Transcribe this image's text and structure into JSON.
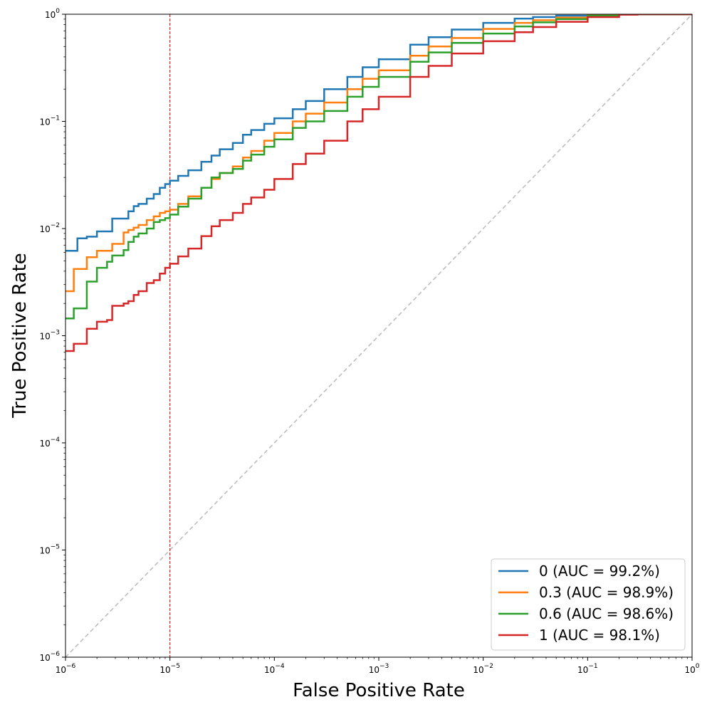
{
  "chart_data": {
    "type": "line",
    "xlabel": "False Positive Rate",
    "ylabel": "True Positive Rate",
    "xscale": "log",
    "yscale": "log",
    "xlim": [
      1e-06,
      1
    ],
    "ylim": [
      1e-06,
      1
    ],
    "x_ticks": [
      1e-06,
      1e-05,
      0.0001,
      0.001,
      0.01,
      0.1,
      1
    ],
    "x_tick_labels": [
      {
        "base": "10",
        "exp": "−6"
      },
      {
        "base": "10",
        "exp": "−5"
      },
      {
        "base": "10",
        "exp": "−4"
      },
      {
        "base": "10",
        "exp": "−3"
      },
      {
        "base": "10",
        "exp": "−2"
      },
      {
        "base": "10",
        "exp": "−1"
      },
      {
        "base": "10",
        "exp": "0"
      }
    ],
    "y_ticks": [
      1e-06,
      1e-05,
      0.0001,
      0.001,
      0.01,
      0.1,
      1
    ],
    "y_tick_labels": [
      {
        "base": "10",
        "exp": "−6"
      },
      {
        "base": "10",
        "exp": "−5"
      },
      {
        "base": "10",
        "exp": "−4"
      },
      {
        "base": "10",
        "exp": "−3"
      },
      {
        "base": "10",
        "exp": "−2"
      },
      {
        "base": "10",
        "exp": "−1"
      },
      {
        "base": "10",
        "exp": "0"
      }
    ],
    "grid": false,
    "legend_position": "lower-right",
    "reference_lines": [
      {
        "kind": "diagonal",
        "style": "dashed",
        "color": "#bdbdbd"
      },
      {
        "kind": "vertical",
        "x": 1e-05,
        "style": "dashed",
        "color": "#d62728"
      }
    ],
    "series": [
      {
        "name": "0 (AUC = 99.2%)",
        "color": "#1f77b4",
        "step": true,
        "x": [
          1e-06,
          1.3e-06,
          1.6e-06,
          2e-06,
          2.8e-06,
          3.6e-06,
          4e-06,
          4.5e-06,
          5e-06,
          6e-06,
          7e-06,
          8e-06,
          9e-06,
          1e-05,
          1.2e-05,
          1.5e-05,
          2e-05,
          2.5e-05,
          3e-05,
          4e-05,
          5e-05,
          6e-05,
          8e-05,
          0.0001,
          0.00015,
          0.0002,
          0.0003,
          0.0005,
          0.0007,
          0.001,
          0.002,
          0.003,
          0.005,
          0.01,
          0.02,
          0.03,
          0.05,
          0.1,
          0.2,
          0.3,
          0.5,
          1
        ],
        "y": [
          0.0062,
          0.0081,
          0.0084,
          0.0094,
          0.0124,
          0.0124,
          0.0145,
          0.0162,
          0.017,
          0.019,
          0.021,
          0.024,
          0.026,
          0.028,
          0.031,
          0.035,
          0.042,
          0.048,
          0.055,
          0.063,
          0.075,
          0.083,
          0.095,
          0.107,
          0.13,
          0.155,
          0.2,
          0.26,
          0.32,
          0.38,
          0.52,
          0.61,
          0.72,
          0.83,
          0.91,
          0.94,
          0.97,
          0.99,
          1.0,
          1.0,
          1.0,
          1.0
        ]
      },
      {
        "name": "0.3 (AUC = 98.9%)",
        "color": "#ff7f0e",
        "step": true,
        "x": [
          1e-06,
          1.2e-06,
          1.6e-06,
          2e-06,
          2.8e-06,
          3.6e-06,
          4e-06,
          4.5e-06,
          5e-06,
          6e-06,
          7e-06,
          8e-06,
          9e-06,
          1e-05,
          1.2e-05,
          1.5e-05,
          2e-05,
          2.5e-05,
          3e-05,
          4e-05,
          5e-05,
          6e-05,
          8e-05,
          0.0001,
          0.00015,
          0.0002,
          0.0003,
          0.0005,
          0.0007,
          0.001,
          0.002,
          0.003,
          0.005,
          0.01,
          0.02,
          0.03,
          0.05,
          0.1,
          0.2,
          0.3,
          0.5,
          1
        ],
        "y": [
          0.0026,
          0.0042,
          0.0054,
          0.0062,
          0.0072,
          0.0092,
          0.0097,
          0.0102,
          0.0108,
          0.012,
          0.013,
          0.014,
          0.0145,
          0.015,
          0.017,
          0.02,
          0.024,
          0.029,
          0.033,
          0.038,
          0.046,
          0.053,
          0.066,
          0.078,
          0.1,
          0.118,
          0.15,
          0.2,
          0.25,
          0.3,
          0.41,
          0.5,
          0.6,
          0.73,
          0.83,
          0.88,
          0.93,
          0.98,
          1.0,
          1.0,
          1.0,
          1.0
        ]
      },
      {
        "name": "0.6 (AUC = 98.6%)",
        "color": "#2ca02c",
        "step": true,
        "x": [
          1e-06,
          1.2e-06,
          1.6e-06,
          2e-06,
          2.5e-06,
          2.8e-06,
          3.6e-06,
          4e-06,
          4.5e-06,
          5e-06,
          6e-06,
          7e-06,
          8e-06,
          9e-06,
          1e-05,
          1.2e-05,
          1.5e-05,
          2e-05,
          2.5e-05,
          3e-05,
          4e-05,
          5e-05,
          6e-05,
          8e-05,
          0.0001,
          0.00015,
          0.0002,
          0.0003,
          0.0005,
          0.0007,
          0.001,
          0.002,
          0.003,
          0.005,
          0.01,
          0.02,
          0.03,
          0.05,
          0.1,
          0.2,
          0.3,
          0.5,
          1
        ],
        "y": [
          0.00145,
          0.0018,
          0.0032,
          0.0043,
          0.0049,
          0.0056,
          0.0063,
          0.0075,
          0.0084,
          0.009,
          0.01,
          0.0115,
          0.012,
          0.0125,
          0.0135,
          0.016,
          0.019,
          0.024,
          0.03,
          0.033,
          0.036,
          0.043,
          0.049,
          0.058,
          0.068,
          0.087,
          0.1,
          0.125,
          0.17,
          0.21,
          0.26,
          0.36,
          0.44,
          0.54,
          0.66,
          0.77,
          0.84,
          0.9,
          0.97,
          1.0,
          1.0,
          1.0,
          1.0
        ]
      },
      {
        "name": "1 (AUC = 98.1%)",
        "color": "#d62728",
        "step": true,
        "x": [
          1e-06,
          1.2e-06,
          1.6e-06,
          2e-06,
          2.5e-06,
          2.8e-06,
          3.6e-06,
          4e-06,
          4.5e-06,
          5e-06,
          6e-06,
          7e-06,
          8e-06,
          9e-06,
          1e-05,
          1.2e-05,
          1.5e-05,
          2e-05,
          2.5e-05,
          3e-05,
          4e-05,
          5e-05,
          6e-05,
          8e-05,
          0.0001,
          0.00015,
          0.0002,
          0.0003,
          0.0005,
          0.0007,
          0.001,
          0.002,
          0.003,
          0.005,
          0.01,
          0.02,
          0.03,
          0.05,
          0.1,
          0.2,
          0.3,
          0.5,
          1
        ],
        "y": [
          0.00072,
          0.00084,
          0.00116,
          0.00135,
          0.0014,
          0.0019,
          0.002,
          0.0021,
          0.0024,
          0.0026,
          0.0031,
          0.0033,
          0.0038,
          0.0043,
          0.0047,
          0.0055,
          0.0065,
          0.0085,
          0.0105,
          0.012,
          0.014,
          0.017,
          0.0195,
          0.023,
          0.029,
          0.04,
          0.05,
          0.066,
          0.1,
          0.13,
          0.17,
          0.26,
          0.33,
          0.43,
          0.56,
          0.68,
          0.76,
          0.85,
          0.94,
          0.99,
          1.0,
          1.0,
          1.0
        ]
      }
    ]
  }
}
